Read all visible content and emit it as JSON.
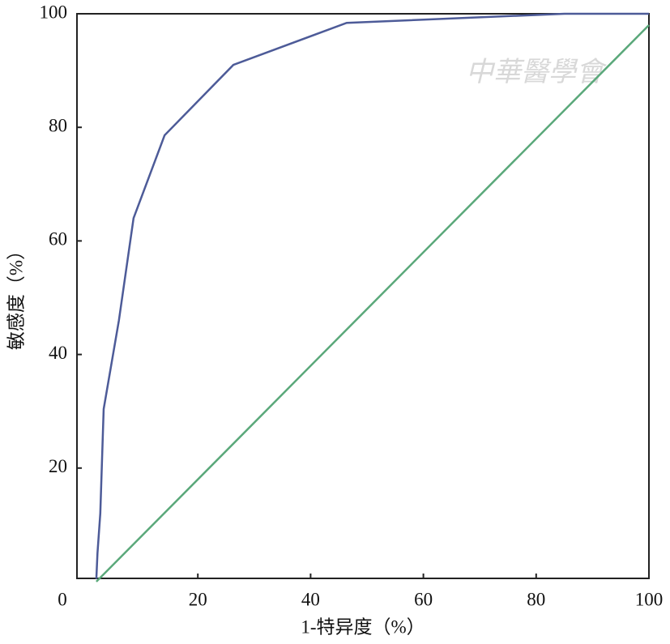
{
  "chart_data": {
    "type": "line",
    "watermark": "中華醫學會",
    "x_label": "1-特异度（%）",
    "y_label": "敏感度（%）",
    "xlim": [
      0,
      100
    ],
    "ylim": [
      0,
      100
    ],
    "xticks": [
      0,
      20,
      40,
      60,
      80,
      100
    ],
    "yticks": [
      20,
      40,
      60,
      80,
      100
    ],
    "grid": false,
    "series": [
      {
        "color": "#4d5b98",
        "x": [
          2,
          2.2,
          2.7,
          3.3,
          6,
          8.6,
          14.1,
          26.3,
          46.4,
          85,
          100
        ],
        "values": [
          0.5,
          5,
          12,
          30.4,
          46,
          64,
          78.6,
          91,
          98.4,
          100,
          100
        ]
      },
      {
        "color": "#5aa87a",
        "x": [
          2,
          100
        ],
        "values": [
          0,
          98
        ]
      }
    ]
  }
}
